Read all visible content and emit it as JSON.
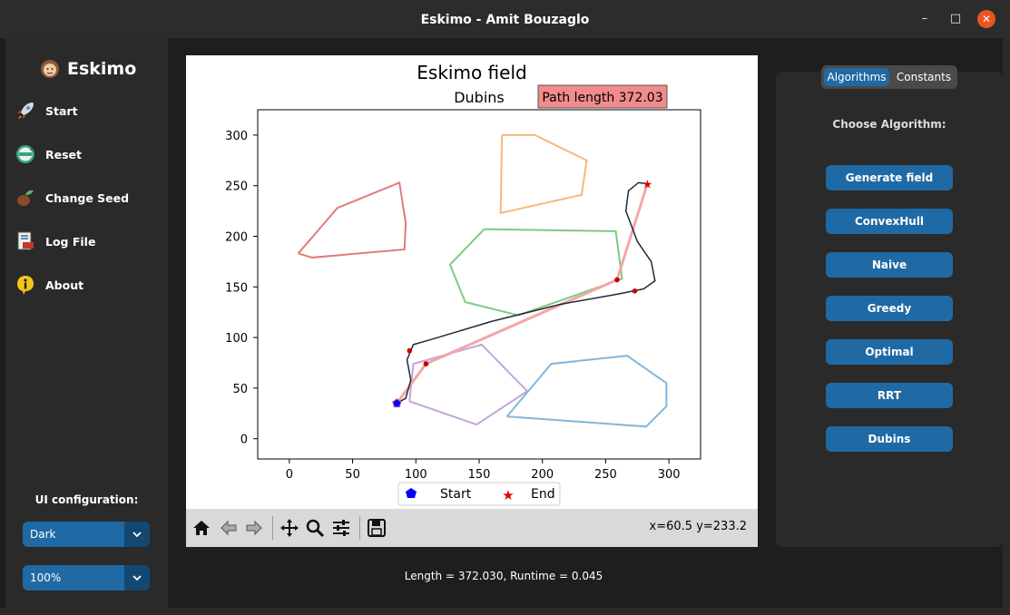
{
  "window": {
    "title": "Eskimo - Amit Bouzaglo",
    "minimize_glyph": "–",
    "maximize_glyph": "□",
    "close_glyph": "✕"
  },
  "sidebar": {
    "brand": "Eskimo",
    "items": [
      {
        "label": "Start",
        "icon": "rocket-icon"
      },
      {
        "label": "Reset",
        "icon": "reset-icon"
      },
      {
        "label": "Change Seed",
        "icon": "seed-icon"
      },
      {
        "label": "Log File",
        "icon": "log-file-icon"
      },
      {
        "label": "About",
        "icon": "info-icon"
      }
    ],
    "ui_config_label": "UI configuration:",
    "theme_select": "Dark",
    "scale_select": "100%"
  },
  "plot": {
    "title": "Eskimo field",
    "subtitle": "Dubins",
    "path_badge": "Path length 372.03",
    "coords_readout": "x=60.5 y=233.2",
    "legend": [
      "Start",
      "End"
    ]
  },
  "status": "Length = 372.030, Runtime = 0.045",
  "right_panel": {
    "tabs": [
      "Algorithms",
      "Constants"
    ],
    "active_tab": "Algorithms",
    "choose_label": "Choose Algorithm:",
    "buttons": [
      "Generate field",
      "ConvexHull",
      "Naive",
      "Greedy",
      "Optimal",
      "RRT",
      "Dubins"
    ]
  },
  "chart_data": {
    "type": "line",
    "title": "Eskimo field",
    "subtitle": "Dubins",
    "xlim": [
      -25,
      325
    ],
    "ylim": [
      -20,
      325
    ],
    "xticks": [
      0,
      50,
      100,
      150,
      200,
      250,
      300
    ],
    "yticks": [
      0,
      50,
      100,
      150,
      200,
      250,
      300
    ],
    "grid": false,
    "legend_placement": "bottom-center",
    "start": {
      "x": 85,
      "y": 35
    },
    "end": {
      "x": 283,
      "y": 252
    },
    "obstacles": [
      {
        "color": "#e07b7b",
        "points": [
          [
            7,
            183
          ],
          [
            38,
            228
          ],
          [
            87,
            253
          ],
          [
            92,
            213
          ],
          [
            91,
            187
          ],
          [
            18,
            179
          ]
        ]
      },
      {
        "color": "#f5b97a",
        "points": [
          [
            168,
            300
          ],
          [
            194,
            300
          ],
          [
            235,
            275
          ],
          [
            231,
            241
          ],
          [
            167,
            223
          ]
        ]
      },
      {
        "color": "#7fc983",
        "points": [
          [
            154,
            207
          ],
          [
            258,
            205
          ],
          [
            263,
            158
          ],
          [
            181,
            122
          ],
          [
            139,
            135
          ],
          [
            127,
            172
          ]
        ]
      },
      {
        "color": "#c3a6d8",
        "points": [
          [
            95,
            37
          ],
          [
            98,
            74
          ],
          [
            152,
            93
          ],
          [
            188,
            47
          ],
          [
            148,
            14
          ]
        ]
      },
      {
        "color": "#84b6d9",
        "points": [
          [
            172,
            22
          ],
          [
            207,
            74
          ],
          [
            267,
            82
          ],
          [
            298,
            55
          ],
          [
            298,
            32
          ],
          [
            282,
            12
          ]
        ]
      }
    ],
    "series": [
      {
        "name": "",
        "color": "#f4a6a6",
        "points": [
          [
            85,
            35
          ],
          [
            108,
            74
          ],
          [
            259,
            157
          ],
          [
            283,
            252
          ]
        ]
      },
      {
        "name": "",
        "color": "#1f2a3a",
        "points": [
          [
            85,
            35
          ],
          [
            92,
            40
          ],
          [
            96,
            58
          ],
          [
            93,
            78
          ],
          [
            98,
            93
          ],
          [
            112,
            98
          ],
          [
            160,
            116
          ],
          [
            215,
            133
          ],
          [
            260,
            143
          ],
          [
            280,
            148
          ],
          [
            289,
            156
          ],
          [
            286,
            175
          ],
          [
            275,
            195
          ],
          [
            266,
            225
          ],
          [
            268,
            245
          ],
          [
            276,
            253
          ],
          [
            283,
            252
          ]
        ]
      }
    ],
    "waypoints": [
      [
        95,
        87
      ],
      [
        108,
        74
      ],
      [
        259,
        157
      ],
      [
        273,
        146
      ]
    ]
  },
  "colors": {
    "accent": "#1f6aa5",
    "accent_dark": "#144870",
    "badge_bg": "#f28b8b",
    "panel_bg": "#2a2a2a",
    "window_bg": "#1e1e1e"
  }
}
